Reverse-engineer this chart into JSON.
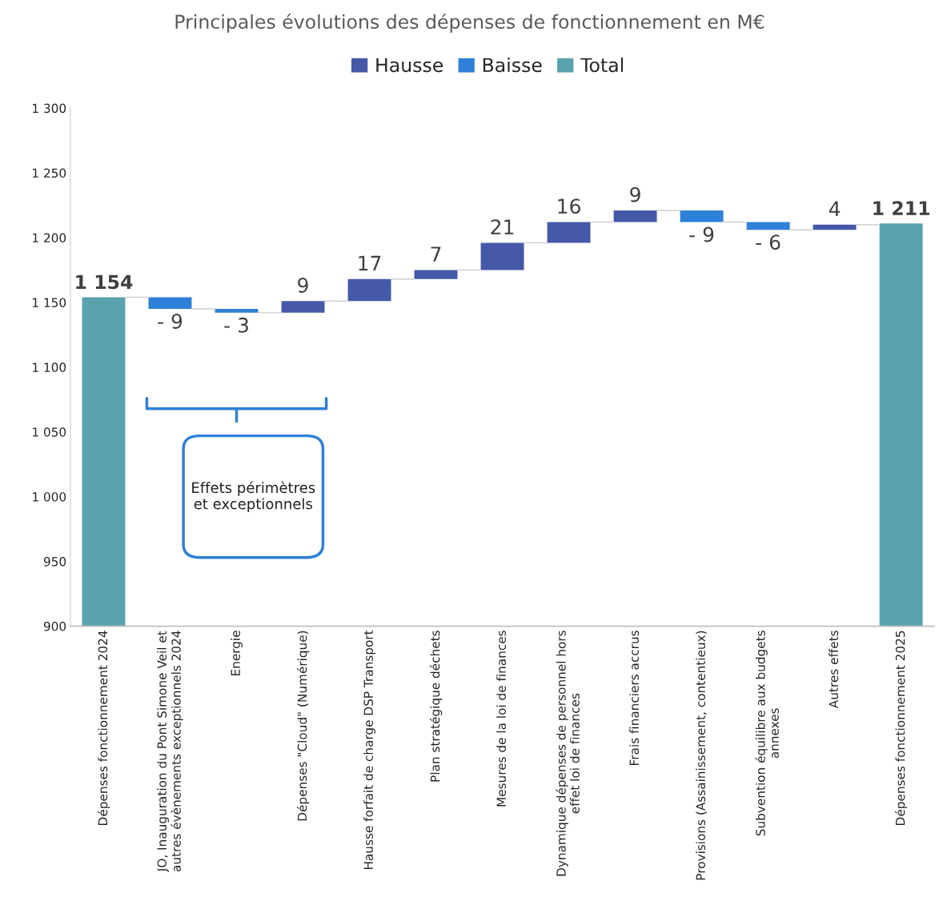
{
  "chart_data": {
    "type": "bar",
    "title": "Principales évolutions des dépenses de fonctionnement en M€",
    "categories": [
      "Dépenses fonctionnement 2024",
      "JO, Inauguration du Pont Simone Veil et\nautres évènements exceptionnels 2024",
      "Energie",
      "Dépenses \"Cloud\" (Numérique)",
      "Hausse forfait de charge DSP Transport",
      "Plan stratégique déchets",
      "Mesures de la loi de finances",
      "Dynamique dépenses de personnel hors\neffet loi de finances",
      "Frais financiers accrus",
      "Provisions (Assainissement, contentieux)",
      "Subvention équilibre aux budgets\nannexes",
      "Autres effets",
      "Dépenses fonctionnement 2025"
    ],
    "series": [
      {
        "name": "Hausse",
        "color": "#4559a8",
        "values": [
          null,
          null,
          null,
          9,
          17,
          7,
          21,
          16,
          9,
          null,
          null,
          4,
          null
        ],
        "base": [
          null,
          null,
          null,
          1142,
          1151,
          1168,
          1175,
          1196,
          1212,
          null,
          null,
          1206,
          null
        ],
        "value_labels": [
          null,
          null,
          null,
          "9",
          "17",
          "7",
          "21",
          "16",
          "9",
          null,
          null,
          "4",
          null
        ]
      },
      {
        "name": "Baisse",
        "color": "#2f80d8",
        "values": [
          null,
          -9,
          -3,
          null,
          null,
          null,
          null,
          null,
          null,
          -9,
          -6,
          null,
          null
        ],
        "base": [
          null,
          1154,
          1145,
          null,
          null,
          null,
          null,
          null,
          null,
          1221,
          1212,
          null,
          null
        ],
        "value_labels": [
          null,
          "- 9",
          "- 3",
          null,
          null,
          null,
          null,
          null,
          null,
          "- 9",
          "- 6",
          null,
          null
        ]
      },
      {
        "name": "Total",
        "color": "#5aa3ae",
        "values": [
          1154,
          null,
          null,
          null,
          null,
          null,
          null,
          null,
          null,
          null,
          null,
          null,
          1211
        ],
        "base": [
          0,
          null,
          null,
          null,
          null,
          null,
          null,
          null,
          null,
          null,
          null,
          null,
          0
        ],
        "value_labels": [
          "1 154",
          null,
          null,
          null,
          null,
          null,
          null,
          null,
          null,
          null,
          null,
          null,
          "1 211"
        ]
      }
    ],
    "ylim": [
      900,
      1300
    ],
    "yticks": [
      {
        "value": 900,
        "label": "900"
      },
      {
        "value": 950,
        "label": "950"
      },
      {
        "value": 1000,
        "label": "1 000"
      },
      {
        "value": 1050,
        "label": "1 050"
      },
      {
        "value": 1100,
        "label": "1 100"
      },
      {
        "value": 1150,
        "label": "1 150"
      },
      {
        "value": 1200,
        "label": "1 200"
      },
      {
        "value": 1250,
        "label": "1 250"
      },
      {
        "value": 1300,
        "label": "1 300"
      }
    ],
    "grid": false,
    "legend": "top",
    "annotations": [
      "Effets périmètres\net exceptionnels"
    ]
  }
}
